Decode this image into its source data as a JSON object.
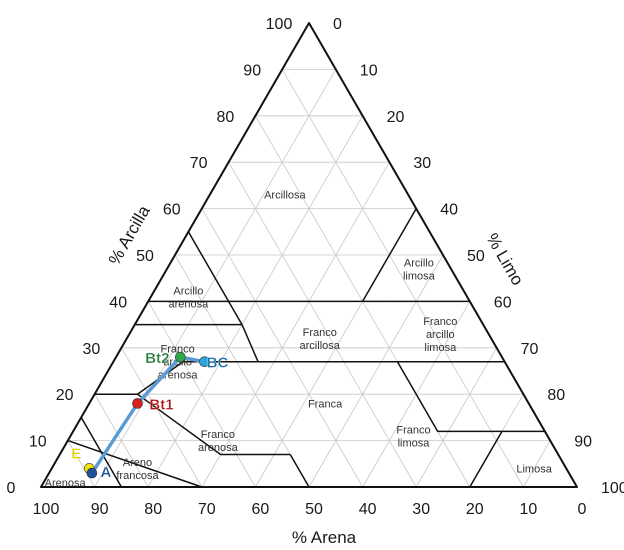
{
  "axes": {
    "clay_title": "% Arcilla",
    "silt_title": "% Limo",
    "sand_title": "% Arena",
    "clay_ticks": [
      "0",
      "10",
      "20",
      "30",
      "40",
      "50",
      "60",
      "70",
      "80",
      "90",
      "100"
    ],
    "silt_ticks": [
      "0",
      "10",
      "20",
      "30",
      "40",
      "50",
      "60",
      "70",
      "80",
      "90",
      "100"
    ],
    "sand_ticks": [
      "100",
      "90",
      "80",
      "70",
      "60",
      "50",
      "40",
      "30",
      "20",
      "10",
      "0"
    ]
  },
  "regions": [
    {
      "id": "arcillosa",
      "lines": [
        "Arcillosa"
      ]
    },
    {
      "id": "arcillo-limosa",
      "lines": [
        "Arcillo",
        "limosa"
      ]
    },
    {
      "id": "arcillo-arenosa",
      "lines": [
        "Arcillo",
        "arenosa"
      ]
    },
    {
      "id": "franco-arcillosa",
      "lines": [
        "Franco",
        "arcillosa"
      ]
    },
    {
      "id": "franco-arcillo-limosa",
      "lines": [
        "Franco",
        "arcillo",
        "limosa"
      ]
    },
    {
      "id": "franco-arcillo-arenosa",
      "lines": [
        "Franco",
        "arcillo",
        "arenosa"
      ]
    },
    {
      "id": "franca",
      "lines": [
        "Franca"
      ]
    },
    {
      "id": "franco-arenosa",
      "lines": [
        "Franco",
        "arenosa"
      ]
    },
    {
      "id": "franco-limosa",
      "lines": [
        "Franco",
        "limosa"
      ]
    },
    {
      "id": "limosa",
      "lines": [
        "Limosa"
      ]
    },
    {
      "id": "areno-francosa",
      "lines": [
        "Areno",
        "francosa"
      ]
    },
    {
      "id": "arenosa",
      "lines": [
        "Arenosa"
      ]
    }
  ],
  "chart_data": {
    "type": "scatter",
    "subtype": "soil-texture-ternary",
    "axes_order": [
      "sand",
      "silt",
      "clay"
    ],
    "series": [
      {
        "connected": true,
        "line_color": "#5b9bd5",
        "points": [
          {
            "label": "E",
            "sand": 89,
            "silt": 7,
            "clay": 4,
            "color": "#f2e600",
            "label_color": "#e0d000"
          },
          {
            "label": "A",
            "sand": 89,
            "silt": 8,
            "clay": 3,
            "color": "#1f4e9c",
            "label_color": "#1f4e9c"
          },
          {
            "label": "Bt1",
            "sand": 73,
            "silt": 9,
            "clay": 18,
            "color": "#d91e1e",
            "label_color": "#b01010"
          },
          {
            "label": "Bt2",
            "sand": 60,
            "silt": 12,
            "clay": 28,
            "color": "#2ea84a",
            "label_color": "#1e7a35"
          },
          {
            "label": "BC",
            "sand": 56,
            "silt": 17,
            "clay": 27,
            "color": "#2aa4dc",
            "label_color": "#1a6ea8"
          }
        ]
      }
    ]
  }
}
